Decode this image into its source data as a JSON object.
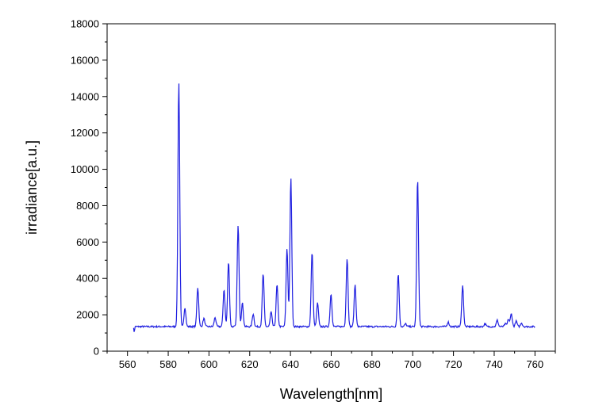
{
  "chart_data": {
    "type": "line",
    "title": "",
    "xlabel": "Wavelength[nm]",
    "ylabel": "irradiance[a.u.]",
    "xlim": [
      550,
      770
    ],
    "ylim": [
      0,
      18000
    ],
    "x_ticks": [
      560,
      580,
      600,
      620,
      640,
      660,
      680,
      700,
      720,
      740,
      760
    ],
    "y_ticks": [
      0,
      2000,
      4000,
      6000,
      8000,
      10000,
      12000,
      14000,
      16000,
      18000
    ],
    "grid": false,
    "legend": "none",
    "series_color": "#1f1fe0",
    "baseline": 1350,
    "x_range": [
      563,
      760
    ],
    "series": [
      {
        "peaks": [
          {
            "x": 585.2,
            "y": 14800
          },
          {
            "x": 588.2,
            "y": 2400
          },
          {
            "x": 594.5,
            "y": 3500
          },
          {
            "x": 597.5,
            "y": 1800
          },
          {
            "x": 603.0,
            "y": 1850
          },
          {
            "x": 607.4,
            "y": 3400
          },
          {
            "x": 609.6,
            "y": 4950
          },
          {
            "x": 614.3,
            "y": 6900
          },
          {
            "x": 616.4,
            "y": 2650
          },
          {
            "x": 621.7,
            "y": 2050
          },
          {
            "x": 626.6,
            "y": 4250
          },
          {
            "x": 630.5,
            "y": 2150
          },
          {
            "x": 633.4,
            "y": 3650
          },
          {
            "x": 638.3,
            "y": 5650
          },
          {
            "x": 640.2,
            "y": 9500
          },
          {
            "x": 650.6,
            "y": 5450
          },
          {
            "x": 653.3,
            "y": 2650
          },
          {
            "x": 659.9,
            "y": 3150
          },
          {
            "x": 667.8,
            "y": 5100
          },
          {
            "x": 671.7,
            "y": 3650
          },
          {
            "x": 692.9,
            "y": 4250
          },
          {
            "x": 696.5,
            "y": 1500
          },
          {
            "x": 702.4,
            "y": 9450
          },
          {
            "x": 717.4,
            "y": 1600
          },
          {
            "x": 724.5,
            "y": 3600
          },
          {
            "x": 735.5,
            "y": 1500
          },
          {
            "x": 741.5,
            "y": 1700
          },
          {
            "x": 745.5,
            "y": 1500
          },
          {
            "x": 747.0,
            "y": 1750
          },
          {
            "x": 748.4,
            "y": 2050
          },
          {
            "x": 750.8,
            "y": 1650
          },
          {
            "x": 753.4,
            "y": 1550
          }
        ]
      }
    ]
  }
}
